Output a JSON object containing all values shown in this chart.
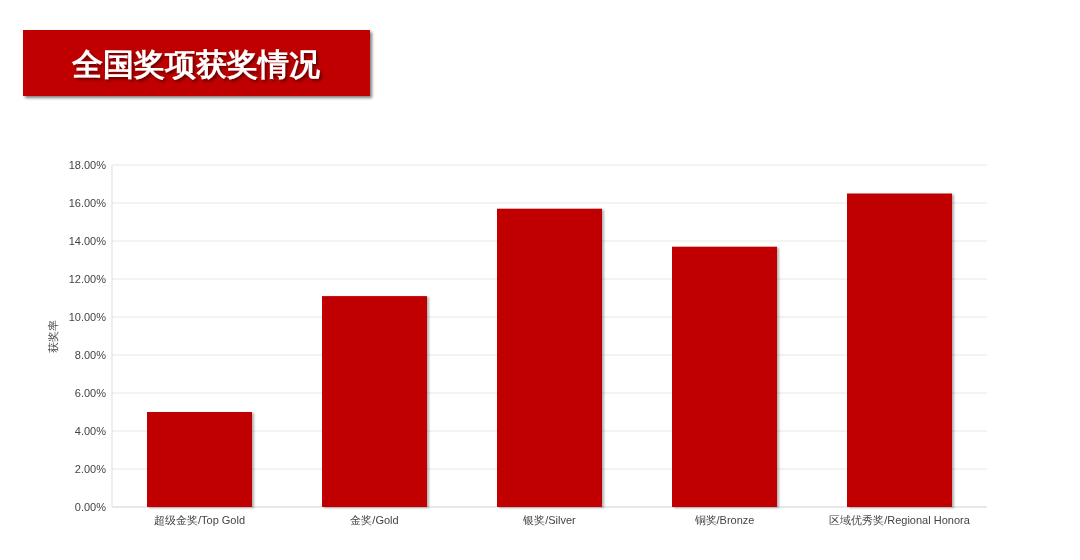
{
  "chart_data": {
    "type": "bar",
    "title": "全国奖项获奖情况",
    "ylabel": "获奖率",
    "categories": [
      "超级金奖/Top Gold",
      "金奖/Gold",
      "银奖/Silver",
      "铜奖/Bronze",
      "区域优秀奖/Regional Honora"
    ],
    "values": [
      5.0,
      11.1,
      15.7,
      13.7,
      16.5
    ],
    "color": "#c00000",
    "ylim": [
      0,
      18
    ],
    "yticks": [
      {
        "value": 0,
        "label": "0.00%"
      },
      {
        "value": 2,
        "label": "2.00%"
      },
      {
        "value": 4,
        "label": "4.00%"
      },
      {
        "value": 6,
        "label": "6.00%"
      },
      {
        "value": 8,
        "label": "8.00%"
      },
      {
        "value": 10,
        "label": "10.00%"
      },
      {
        "value": 12,
        "label": "12.00%"
      },
      {
        "value": 14,
        "label": "14.00%"
      },
      {
        "value": 16,
        "label": "16.00%"
      },
      {
        "value": 18,
        "label": "18.00%"
      }
    ],
    "grid": "y"
  }
}
